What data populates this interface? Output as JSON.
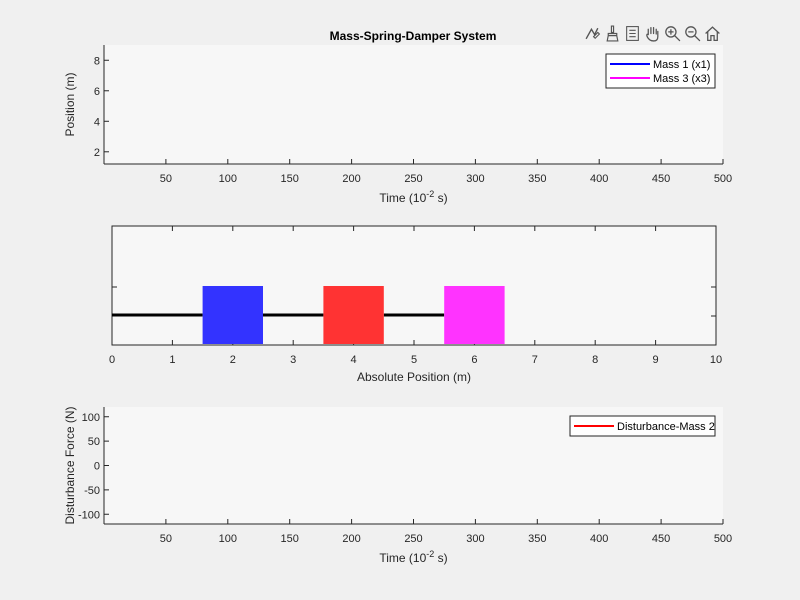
{
  "figure": {
    "title": "Mass-Spring-Damper System",
    "background": "#f0f0f0",
    "axes_background": "#f7f7f7"
  },
  "toolbar": {
    "icons": [
      "data-tips-icon",
      "brush-icon",
      "legend-toggle-icon",
      "pan-icon",
      "zoom-in-icon",
      "zoom-out-icon",
      "home-icon"
    ]
  },
  "chart_data": [
    {
      "type": "line",
      "xlabel_main": "Time (10",
      "xlabel_exp": "-2",
      "xlabel_tail": " s)",
      "ylabel": "Position (m)",
      "xlim": [
        0,
        500
      ],
      "ylim": [
        1.2,
        9
      ],
      "x_ticks": [
        "50",
        "100",
        "150",
        "200",
        "250",
        "300",
        "350",
        "400",
        "450",
        "500"
      ],
      "y_ticks": [
        "2",
        "4",
        "6",
        "8"
      ],
      "legend_position": "top-right",
      "series": [
        {
          "name": "Mass 1 (x1)",
          "color": "#0000ff",
          "values": []
        },
        {
          "name": "Mass 3 (x3)",
          "color": "#ff00ff",
          "values": []
        }
      ]
    },
    {
      "type": "bar",
      "xlabel": "Absolute Position (m)",
      "xlim": [
        0,
        10
      ],
      "ylim": [
        0,
        1
      ],
      "x_ticks": [
        "0",
        "1",
        "2",
        "3",
        "4",
        "5",
        "6",
        "7",
        "8",
        "9",
        "10"
      ],
      "springs": [
        {
          "x_start": 0,
          "x_end": 1.5,
          "y": 0.5
        },
        {
          "x_start": 2.5,
          "x_end": 3.5,
          "y": 0.5
        },
        {
          "x_start": 4.5,
          "x_end": 5.5,
          "y": 0.5
        }
      ],
      "masses": [
        {
          "x_start": 1.5,
          "x_end": 2.5,
          "y_bottom": 0,
          "y_top": 1,
          "color": "#3333ff"
        },
        {
          "x_start": 3.5,
          "x_end": 4.5,
          "y_bottom": 0,
          "y_top": 1,
          "color": "#ff3333"
        },
        {
          "x_start": 5.5,
          "x_end": 6.5,
          "y_bottom": 0,
          "y_top": 1,
          "color": "#ff33ff"
        }
      ]
    },
    {
      "type": "line",
      "xlabel_main": "Time (10",
      "xlabel_exp": "-2",
      "xlabel_tail": " s)",
      "ylabel": "Disturbance Force (N)",
      "xlim": [
        0,
        500
      ],
      "ylim": [
        -120,
        120
      ],
      "x_ticks": [
        "50",
        "100",
        "150",
        "200",
        "250",
        "300",
        "350",
        "400",
        "450",
        "500"
      ],
      "y_ticks": [
        "100",
        "50",
        "0",
        "-50",
        "-100"
      ],
      "legend_position": "top-right",
      "series": [
        {
          "name": "Disturbance-Mass 2",
          "color": "#ff0000",
          "values": []
        }
      ]
    }
  ]
}
